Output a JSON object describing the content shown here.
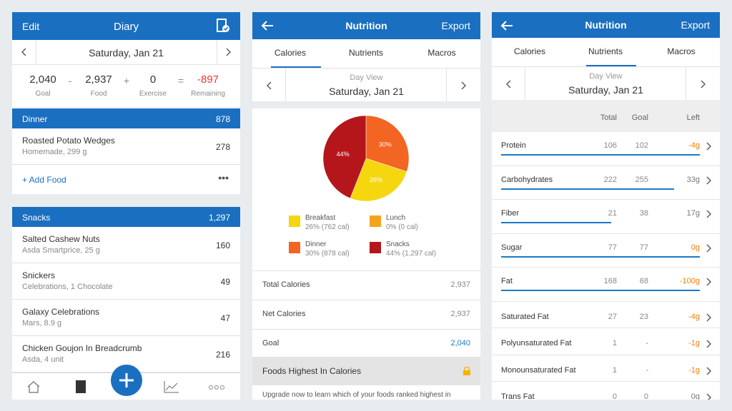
{
  "diary": {
    "header": {
      "left": "Edit",
      "title": "Diary"
    },
    "date": "Saturday, Jan 21",
    "summary": [
      {
        "value": "2,040",
        "label": "Goal"
      },
      {
        "op": "-"
      },
      {
        "value": "2,937",
        "label": "Food"
      },
      {
        "op": "+"
      },
      {
        "value": "0",
        "label": "Exercise"
      },
      {
        "op": "="
      },
      {
        "value": "-897",
        "label": "Remaining",
        "color": "#e53935"
      }
    ],
    "meals": [
      {
        "name": "Dinner",
        "calories": "878",
        "items": [
          {
            "name": "Roasted Potato Wedges",
            "detail": "Homemade, 299 g",
            "calories": "278"
          }
        ],
        "add_food": "+ Add Food"
      },
      {
        "name": "Snacks",
        "calories": "1,297",
        "items": [
          {
            "name": "Salted Cashew Nuts",
            "detail": "Asda Smartprice, 25 g",
            "calories": "160"
          },
          {
            "name": "Snickers",
            "detail": "Celebrations, 1 Chocolate",
            "calories": "49"
          },
          {
            "name": "Galaxy Celebrations",
            "detail": "Mars, 8.9 g",
            "calories": "47"
          },
          {
            "name": "Chicken Goujon In Breadcrumb",
            "detail": "Asda, 4 unit",
            "calories": "216"
          }
        ]
      }
    ]
  },
  "calories": {
    "header": {
      "title": "Nutrition",
      "action": "Export"
    },
    "tabs": [
      "Calories",
      "Nutrients",
      "Macros"
    ],
    "view": "Day View",
    "date": "Saturday, Jan 21",
    "pie": {
      "values": [
        30,
        26,
        44
      ],
      "value_labels": [
        "30%",
        "26%",
        "44%"
      ],
      "colors": [
        "#f26522",
        "#f5d60f",
        "#b5161b"
      ]
    },
    "legend": [
      {
        "name": "Breakfast",
        "detail": "26% (762 cal)",
        "color": "#f5d60f"
      },
      {
        "name": "Lunch",
        "detail": "0% (0 cal)",
        "color": "#f6a21e"
      },
      {
        "name": "Dinner",
        "detail": "30% (878 cal)",
        "color": "#f26522"
      },
      {
        "name": "Snacks",
        "detail": "44% (1,297 cal)",
        "color": "#b5161b"
      }
    ],
    "rows": [
      {
        "label": "Total Calories",
        "value": "2,937"
      },
      {
        "label": "Net Calories",
        "value": "2,937"
      },
      {
        "label": "Goal",
        "value": "2,040",
        "color": "#1a7ac8"
      }
    ],
    "section": "Foods Highest In Calories",
    "upgrade": "Upgrade now to learn which of your foods ranked highest in"
  },
  "nutrients": {
    "header": {
      "title": "Nutrition",
      "action": "Export"
    },
    "tabs": [
      "Calories",
      "Nutrients",
      "Macros"
    ],
    "view": "Day View",
    "date": "Saturday, Jan 21",
    "columns": [
      "Total",
      "Goal",
      "Left"
    ],
    "rows": [
      {
        "name": "Protein",
        "total": "106",
        "goal": "102",
        "left": "-4g",
        "color": "#f57c00"
      },
      {
        "name": "Carbohydrates",
        "total": "222",
        "goal": "255",
        "left": "33g",
        "color": "#777"
      },
      {
        "name": "Fiber",
        "total": "21",
        "goal": "38",
        "left": "17g",
        "color": "#777"
      },
      {
        "name": "Sugar",
        "total": "77",
        "goal": "77",
        "left": "0g",
        "color": "#f57c00"
      },
      {
        "name": "Fat",
        "total": "168",
        "goal": "68",
        "left": "-100g",
        "color": "#f57c00"
      },
      {
        "name": "Saturated Fat",
        "total": "27",
        "goal": "23",
        "left": "-4g",
        "color": "#f57c00"
      },
      {
        "name": "Polyunsaturated Fat",
        "total": "1",
        "goal": "-",
        "left": "-1g",
        "color": "#f57c00"
      },
      {
        "name": "Monounsaturated Fat",
        "total": "1",
        "goal": "-",
        "left": "-1g",
        "color": "#f57c00"
      },
      {
        "name": "Trans Fat",
        "total": "0",
        "goal": "0",
        "left": "0g",
        "color": "#777"
      }
    ]
  }
}
